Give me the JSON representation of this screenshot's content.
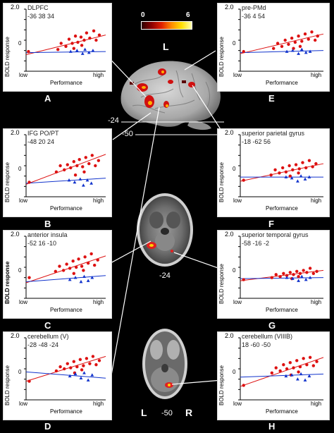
{
  "colorbar": {
    "min": "0",
    "max": "6",
    "colors": [
      "#2a0000",
      "#8b0000",
      "#e02000",
      "#ff8c00",
      "#ffe000",
      "#ffffb0"
    ]
  },
  "brain": {
    "hemisphere_top": "L",
    "slice1_label": "-24",
    "slice2_label": "-50",
    "axial1_label": "-24",
    "axial2_label": "-50",
    "left_label": "L",
    "right_label": "R"
  },
  "axes": {
    "ylabel": "BOLD response",
    "xlabel": "Performance",
    "x_low": "low",
    "x_high": "high",
    "yticks": [
      "2.0",
      "1.5",
      "1.0",
      "0.5",
      "0",
      "-0.5",
      "-1.0"
    ],
    "ylim": [
      -1.0,
      2.0
    ],
    "xlim": [
      0,
      10
    ]
  },
  "series_colors": {
    "red": "#dd1111",
    "blue": "#1133cc"
  },
  "chart_data": [
    {
      "type": "scatter",
      "panel": "A",
      "title": "DLPFC",
      "coords": "-36  38  34",
      "red_points": [
        [
          0.3,
          -0.05
        ],
        [
          4.0,
          0.05
        ],
        [
          4.4,
          0.35
        ],
        [
          5.0,
          0.2
        ],
        [
          5.4,
          0.55
        ],
        [
          5.8,
          0.35
        ],
        [
          6.2,
          0.7
        ],
        [
          6.5,
          0.4
        ],
        [
          6.9,
          0.65
        ],
        [
          7.3,
          0.5
        ],
        [
          7.6,
          0.85
        ],
        [
          8.0,
          0.6
        ],
        [
          8.5,
          0.95
        ],
        [
          8.8,
          0.5
        ],
        [
          9.2,
          0.75
        ],
        [
          6.0,
          0.1
        ],
        [
          7.0,
          0.25
        ]
      ],
      "blue_points": [
        [
          5.6,
          -0.05
        ],
        [
          6.4,
          0.0
        ],
        [
          7.1,
          -0.15
        ],
        [
          7.4,
          0.05
        ],
        [
          7.9,
          -0.1
        ],
        [
          8.4,
          0.0
        ]
      ],
      "red_line": [
        [
          0,
          -0.2
        ],
        [
          10,
          0.75
        ]
      ],
      "blue_line": [
        [
          0,
          -0.1
        ],
        [
          10,
          -0.05
        ]
      ]
    },
    {
      "type": "scatter",
      "panel": "B",
      "title": "IFG PO/PT",
      "coords": "-48  20  24",
      "red_points": [
        [
          0.4,
          -0.3
        ],
        [
          3.8,
          0.2
        ],
        [
          4.3,
          0.5
        ],
        [
          4.8,
          0.3
        ],
        [
          5.2,
          0.55
        ],
        [
          5.6,
          0.4
        ],
        [
          6.0,
          0.7
        ],
        [
          6.4,
          0.5
        ],
        [
          6.7,
          0.8
        ],
        [
          7.1,
          0.45
        ],
        [
          7.5,
          0.9
        ],
        [
          7.9,
          0.6
        ],
        [
          8.3,
          1.0
        ],
        [
          8.7,
          0.5
        ],
        [
          9.1,
          0.75
        ],
        [
          6.2,
          0.05
        ],
        [
          7.3,
          0.2
        ]
      ],
      "blue_points": [
        [
          5.4,
          -0.2
        ],
        [
          6.1,
          -0.3
        ],
        [
          6.8,
          -0.15
        ],
        [
          7.2,
          -0.45
        ],
        [
          7.7,
          -0.2
        ],
        [
          8.2,
          -0.35
        ]
      ],
      "red_line": [
        [
          0,
          -0.4
        ],
        [
          10,
          1.05
        ]
      ],
      "blue_line": [
        [
          0,
          -0.35
        ],
        [
          10,
          -0.1
        ]
      ]
    },
    {
      "type": "scatter",
      "panel": "C",
      "title": "anterior insula",
      "coords": "-52  16  -10",
      "red_points": [
        [
          0.4,
          0.0
        ],
        [
          3.7,
          0.3
        ],
        [
          4.2,
          0.55
        ],
        [
          4.7,
          0.35
        ],
        [
          5.1,
          0.65
        ],
        [
          5.5,
          0.45
        ],
        [
          5.9,
          0.8
        ],
        [
          6.3,
          0.5
        ],
        [
          6.6,
          0.9
        ],
        [
          7.0,
          0.55
        ],
        [
          7.4,
          1.0
        ],
        [
          7.8,
          0.7
        ],
        [
          8.2,
          1.15
        ],
        [
          8.6,
          0.6
        ],
        [
          9.0,
          0.85
        ],
        [
          6.0,
          0.2
        ],
        [
          7.2,
          0.35
        ]
      ],
      "blue_points": [
        [
          5.5,
          -0.1
        ],
        [
          6.2,
          0.0
        ],
        [
          6.9,
          -0.2
        ],
        [
          7.3,
          0.05
        ],
        [
          7.8,
          -0.15
        ],
        [
          8.3,
          0.0
        ]
      ],
      "red_line": [
        [
          0,
          -0.25
        ],
        [
          10,
          1.05
        ]
      ],
      "blue_line": [
        [
          0,
          -0.2
        ],
        [
          10,
          0.1
        ]
      ]
    },
    {
      "type": "scatter",
      "panel": "D",
      "title": "cerebellum (V)",
      "coords": "-28  -48  -24",
      "red_points": [
        [
          0.4,
          -0.1
        ],
        [
          3.8,
          0.4
        ],
        [
          4.3,
          0.6
        ],
        [
          4.8,
          0.5
        ],
        [
          5.2,
          0.75
        ],
        [
          5.6,
          0.55
        ],
        [
          6.0,
          0.85
        ],
        [
          6.4,
          0.6
        ],
        [
          6.8,
          0.95
        ],
        [
          7.2,
          0.65
        ],
        [
          7.6,
          1.0
        ],
        [
          8.0,
          0.75
        ],
        [
          8.4,
          1.1
        ],
        [
          8.8,
          0.7
        ],
        [
          9.2,
          0.9
        ],
        [
          6.1,
          0.3
        ],
        [
          7.0,
          0.45
        ]
      ],
      "blue_points": [
        [
          5.5,
          0.15
        ],
        [
          6.2,
          0.25
        ],
        [
          6.9,
          0.05
        ],
        [
          7.3,
          0.3
        ],
        [
          7.8,
          -0.05
        ],
        [
          8.3,
          0.2
        ]
      ],
      "red_line": [
        [
          0,
          -0.1
        ],
        [
          10,
          1.1
        ]
      ],
      "blue_line": [
        [
          0,
          0.35
        ],
        [
          10,
          0.05
        ]
      ]
    },
    {
      "type": "scatter",
      "panel": "E",
      "title": "pre-PMd",
      "coords": "-36  4  54",
      "red_points": [
        [
          0.4,
          -0.05
        ],
        [
          4.0,
          0.1
        ],
        [
          4.5,
          0.35
        ],
        [
          5.0,
          0.2
        ],
        [
          5.4,
          0.5
        ],
        [
          5.8,
          0.3
        ],
        [
          6.2,
          0.6
        ],
        [
          6.6,
          0.4
        ],
        [
          7.0,
          0.7
        ],
        [
          7.4,
          0.45
        ],
        [
          7.8,
          0.8
        ],
        [
          8.2,
          0.55
        ],
        [
          8.6,
          0.9
        ],
        [
          9.0,
          0.5
        ],
        [
          9.3,
          0.7
        ],
        [
          6.4,
          0.1
        ],
        [
          7.2,
          0.2
        ]
      ],
      "blue_points": [
        [
          5.6,
          -0.05
        ],
        [
          6.3,
          0.0
        ],
        [
          7.0,
          -0.15
        ],
        [
          7.4,
          0.05
        ],
        [
          7.9,
          -0.1
        ],
        [
          8.4,
          -0.05
        ]
      ],
      "red_line": [
        [
          0,
          -0.15
        ],
        [
          10,
          0.8
        ]
      ],
      "blue_line": [
        [
          0,
          -0.1
        ],
        [
          10,
          0.0
        ]
      ]
    },
    {
      "type": "scatter",
      "panel": "F",
      "title": "superior parietal gyrus",
      "coords": "-18  -62  56",
      "red_points": [
        [
          0.4,
          -0.2
        ],
        [
          3.7,
          0.05
        ],
        [
          4.2,
          0.3
        ],
        [
          4.7,
          0.15
        ],
        [
          5.1,
          0.4
        ],
        [
          5.5,
          0.2
        ],
        [
          5.9,
          0.5
        ],
        [
          6.3,
          0.3
        ],
        [
          6.7,
          0.55
        ],
        [
          7.1,
          0.35
        ],
        [
          7.5,
          0.65
        ],
        [
          7.9,
          0.4
        ],
        [
          8.3,
          0.75
        ],
        [
          8.7,
          0.45
        ],
        [
          9.1,
          0.6
        ],
        [
          6.0,
          0.0
        ],
        [
          7.0,
          0.15
        ]
      ],
      "blue_points": [
        [
          5.5,
          -0.05
        ],
        [
          6.2,
          -0.1
        ],
        [
          6.9,
          -0.25
        ],
        [
          7.3,
          0.0
        ],
        [
          7.8,
          -0.15
        ],
        [
          8.3,
          -0.05
        ]
      ],
      "red_line": [
        [
          0,
          -0.25
        ],
        [
          10,
          0.6
        ]
      ],
      "blue_line": [
        [
          0,
          -0.05
        ],
        [
          10,
          -0.05
        ]
      ]
    },
    {
      "type": "scatter",
      "panel": "G",
      "title": "superior temporal gyrus",
      "coords": "-58  -16  -2",
      "red_points": [
        [
          0.4,
          -0.1
        ],
        [
          3.8,
          0.0
        ],
        [
          4.3,
          0.15
        ],
        [
          4.8,
          0.05
        ],
        [
          5.2,
          0.2
        ],
        [
          5.6,
          0.1
        ],
        [
          6.0,
          0.25
        ],
        [
          6.4,
          0.15
        ],
        [
          6.8,
          0.3
        ],
        [
          7.2,
          0.2
        ],
        [
          7.6,
          0.35
        ],
        [
          8.0,
          0.25
        ],
        [
          8.4,
          0.45
        ],
        [
          8.8,
          0.2
        ],
        [
          9.2,
          0.3
        ],
        [
          6.2,
          -0.05
        ],
        [
          7.0,
          0.05
        ]
      ],
      "blue_points": [
        [
          5.6,
          0.0
        ],
        [
          6.3,
          -0.05
        ],
        [
          7.0,
          -0.15
        ],
        [
          7.4,
          0.05
        ],
        [
          7.9,
          -0.1
        ],
        [
          8.4,
          0.0
        ]
      ],
      "red_line": [
        [
          0,
          -0.15
        ],
        [
          10,
          0.35
        ]
      ],
      "blue_line": [
        [
          0,
          -0.05
        ],
        [
          10,
          0.0
        ]
      ]
    },
    {
      "type": "scatter",
      "panel": "H",
      "title": "cerebellum (VIIIB)",
      "coords": "18  -60  -50",
      "red_points": [
        [
          0.4,
          -0.3
        ],
        [
          3.8,
          0.3
        ],
        [
          4.3,
          0.55
        ],
        [
          4.8,
          0.4
        ],
        [
          5.2,
          0.7
        ],
        [
          5.6,
          0.5
        ],
        [
          6.0,
          0.8
        ],
        [
          6.4,
          0.55
        ],
        [
          6.8,
          0.9
        ],
        [
          7.2,
          0.6
        ],
        [
          7.6,
          1.0
        ],
        [
          8.0,
          0.7
        ],
        [
          8.4,
          1.05
        ],
        [
          8.8,
          0.65
        ],
        [
          9.2,
          0.85
        ],
        [
          6.1,
          0.2
        ],
        [
          7.0,
          0.35
        ]
      ],
      "blue_points": [
        [
          5.5,
          0.15
        ],
        [
          6.2,
          0.2
        ],
        [
          6.9,
          0.0
        ],
        [
          7.3,
          0.25
        ],
        [
          7.8,
          -0.05
        ],
        [
          8.3,
          0.15
        ]
      ],
      "red_line": [
        [
          0,
          -0.35
        ],
        [
          10,
          1.05
        ]
      ],
      "blue_line": [
        [
          0,
          0.1
        ],
        [
          10,
          0.25
        ]
      ]
    }
  ]
}
